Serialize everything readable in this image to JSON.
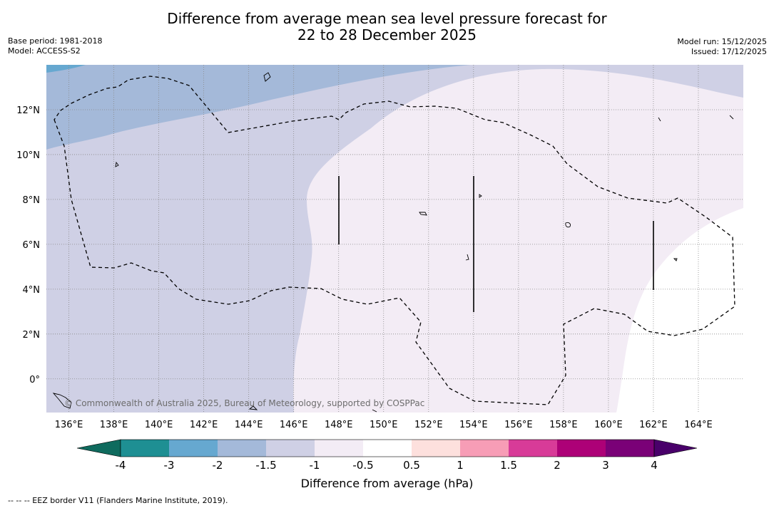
{
  "title": {
    "line1": "Difference from average mean sea level pressure forecast for",
    "line2": "22 to 28 December 2025"
  },
  "meta": {
    "base_period": "Base period: 1981-2018",
    "model": "Model: ACCESS-S2",
    "model_run": "Model run: 15/12/2025",
    "issued": "Issued: 17/12/2025"
  },
  "map": {
    "lon_ticks": [
      "136°E",
      "138°E",
      "140°E",
      "142°E",
      "144°E",
      "146°E",
      "148°E",
      "150°E",
      "152°E",
      "154°E",
      "156°E",
      "158°E",
      "160°E",
      "162°E",
      "164°E"
    ],
    "lat_ticks": [
      "12°N",
      "10°N",
      "8°N",
      "6°N",
      "4°N",
      "2°N",
      "0°"
    ],
    "lon_range": [
      135,
      166
    ],
    "lat_range": [
      -1.5,
      14
    ],
    "watermark": "© Commonwealth of Australia 2025, Bureau of Meteorology, supported by COSPPac"
  },
  "colorbar": {
    "title": "Difference from average (hPa)",
    "labels": [
      "-4",
      "-3",
      "-2",
      "-1.5",
      "-1",
      "-0.5",
      "0.5",
      "1",
      "1.5",
      "2",
      "3",
      "4"
    ],
    "colors": [
      "#1e8f93",
      "#66a8d0",
      "#a4b9d9",
      "#cfd0e5",
      "#f3ecf5",
      "#ffffff",
      "#fde0dd",
      "#f79db6",
      "#d83b98",
      "#ad0177",
      "#7a0177"
    ],
    "under_color": "#0f6b5e",
    "over_color": "#49006a"
  },
  "footnote": "--  --  -- EEZ border V11 (Flanders Marine Institute, 2019)."
}
